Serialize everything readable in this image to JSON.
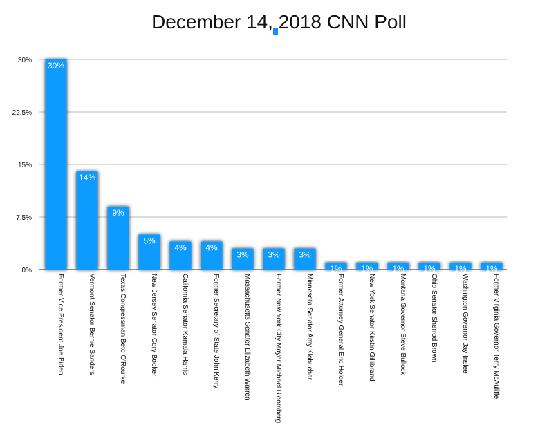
{
  "chart_data": {
    "type": "bar",
    "title": "December 14, 2018 CNN Poll",
    "xlabel": "",
    "ylabel": "",
    "ylim": [
      0,
      30
    ],
    "yticks": [
      "0%",
      "7.5%",
      "15%",
      "22.5%",
      "30%"
    ],
    "ytick_values": [
      0,
      7.5,
      15,
      22.5,
      30
    ],
    "grid": true,
    "bar_color": "#0a9bff",
    "categories": [
      "Former Vice President Joe Biden",
      "Vermont Senator Bernie Sanders",
      "Texas Congressman Beto O'Rourke",
      "New Jersey Senator Cory Booker",
      "California Senator Kamala Harris",
      "Former Secretary of State John Kerry",
      "Massachusetts Senator Elizabeth Warren",
      "Former New York City Mayor Michael Bloomberg",
      "Minnesota Senator Amy Klobuchar",
      "Former Attorney General Eric Holder",
      "New York Senator Kirstin Gillibrand",
      "Montana Governor Steve Bullock",
      "Ohio Senator Sherrod Brown",
      "Washington Governor Jay Inslee",
      "Former Virginia Governor Terry McAuliffe"
    ],
    "values": [
      30,
      14,
      9,
      5,
      4,
      4,
      3,
      3,
      3,
      1,
      1,
      1,
      1,
      1,
      1
    ],
    "data_labels": [
      "30%",
      "14%",
      "9%",
      "5%",
      "4%",
      "4%",
      "3%",
      "3%",
      "3%",
      "1%",
      "1%",
      "1%",
      "1%",
      "1%",
      "1%"
    ]
  }
}
